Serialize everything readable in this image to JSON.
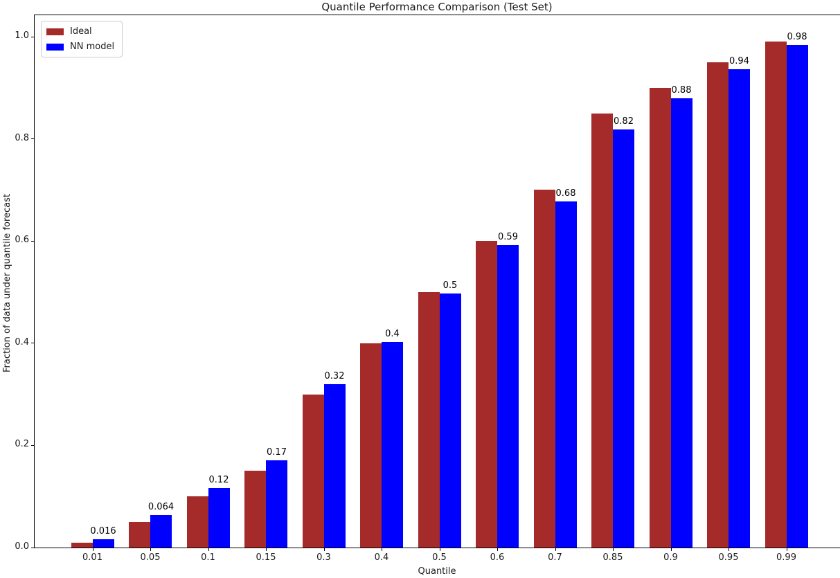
{
  "chart_data": {
    "type": "bar",
    "title": "Quantile Performance Comparison (Test Set)",
    "xlabel": "Quantile",
    "ylabel": "Fraction of data under quantile forecast",
    "categories": [
      "0.01",
      "0.05",
      "0.1",
      "0.15",
      "0.3",
      "0.4",
      "0.5",
      "0.6",
      "0.7",
      "0.85",
      "0.9",
      "0.95",
      "0.99"
    ],
    "series": [
      {
        "name": "Ideal",
        "color": "#A52A2A",
        "values": [
          0.01,
          0.05,
          0.1,
          0.15,
          0.3,
          0.4,
          0.5,
          0.6,
          0.7,
          0.85,
          0.9,
          0.95,
          0.99
        ]
      },
      {
        "name": "NN model",
        "color": "#0000FF",
        "values": [
          0.016,
          0.064,
          0.117,
          0.171,
          0.32,
          0.403,
          0.497,
          0.592,
          0.677,
          0.818,
          0.879,
          0.936,
          0.984
        ],
        "bar_labels": [
          "0.016",
          "0.064",
          "0.12",
          "0.17",
          "0.32",
          "0.4",
          "0.5",
          "0.59",
          "0.68",
          "0.82",
          "0.88",
          "0.94",
          "0.98"
        ]
      }
    ],
    "yticks": [
      "0.0",
      "0.2",
      "0.4",
      "0.6",
      "0.8",
      "1.0"
    ],
    "ylim": [
      0,
      1.042
    ],
    "grid": false,
    "legend_position": "upper left"
  }
}
